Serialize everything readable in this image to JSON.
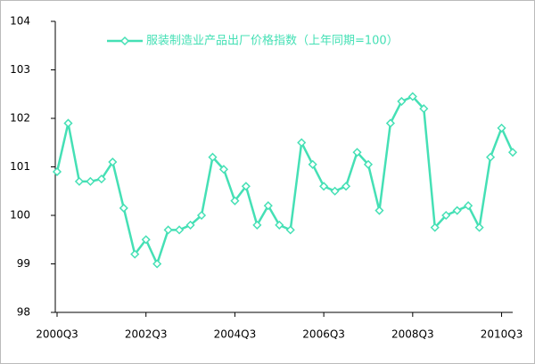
{
  "chart_data": {
    "type": "line",
    "categories": [
      "2000Q3",
      null,
      null,
      null,
      null,
      null,
      null,
      null,
      "2002Q3",
      null,
      null,
      null,
      null,
      null,
      null,
      null,
      "2004Q3",
      null,
      null,
      null,
      null,
      null,
      null,
      null,
      "2006Q3",
      null,
      null,
      null,
      null,
      null,
      null,
      null,
      "2008Q3",
      null,
      null,
      null,
      null,
      null,
      null,
      null,
      "2010Q3",
      null
    ],
    "series": [
      {
        "name": "服装制造业产品出厂价格指数（上年同期=100）",
        "color": "#45e0b5",
        "values": [
          100.9,
          101.9,
          100.7,
          100.7,
          100.75,
          101.1,
          100.15,
          99.2,
          99.5,
          99.0,
          99.7,
          99.7,
          99.8,
          100.0,
          101.2,
          100.95,
          100.3,
          100.6,
          99.8,
          100.2,
          99.8,
          99.7,
          101.5,
          101.05,
          100.6,
          100.5,
          100.6,
          101.3,
          101.05,
          100.1,
          101.9,
          102.35,
          102.45,
          102.2,
          99.75,
          100.0,
          100.1,
          100.2,
          99.75,
          101.2,
          101.8,
          101.3
        ]
      }
    ],
    "ylim": [
      98,
      104
    ],
    "yticks": [
      98,
      99,
      100,
      101,
      102,
      103,
      104
    ],
    "grid": false,
    "legend": "top"
  }
}
